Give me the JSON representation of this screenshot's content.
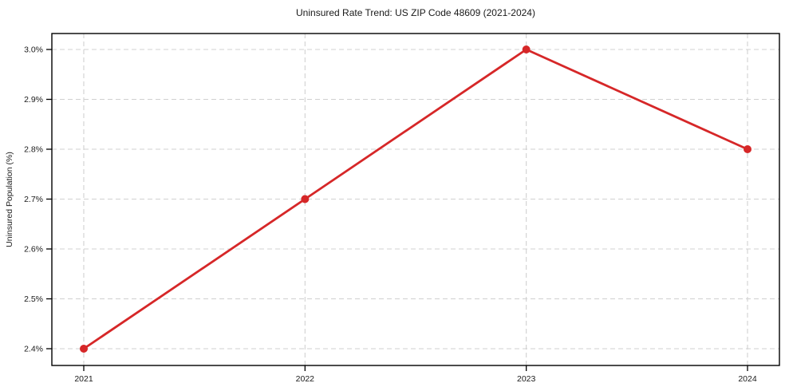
{
  "chart_data": {
    "type": "line",
    "title": "Uninsured Rate Trend: US ZIP Code 48609 (2021-2024)",
    "xlabel": "",
    "ylabel": "Uninsured Population (%)",
    "categories": [
      "2021",
      "2022",
      "2023",
      "2024"
    ],
    "values": [
      2.4,
      2.7,
      3.0,
      2.8
    ],
    "ylim": [
      2.4,
      3.0
    ],
    "ytick_step": 0.1,
    "ytick_labels": [
      "2.4%",
      "2.5%",
      "2.6%",
      "2.7%",
      "2.8%",
      "2.9%",
      "3.0%"
    ],
    "grid": "both-dashed",
    "legend_position": "none",
    "marker": "circle",
    "line_color": "#d62728",
    "grid_color": "#d0d0d0",
    "axis_color": "#000000",
    "text_color": "#1a1a1a",
    "background": "#ffffff"
  }
}
